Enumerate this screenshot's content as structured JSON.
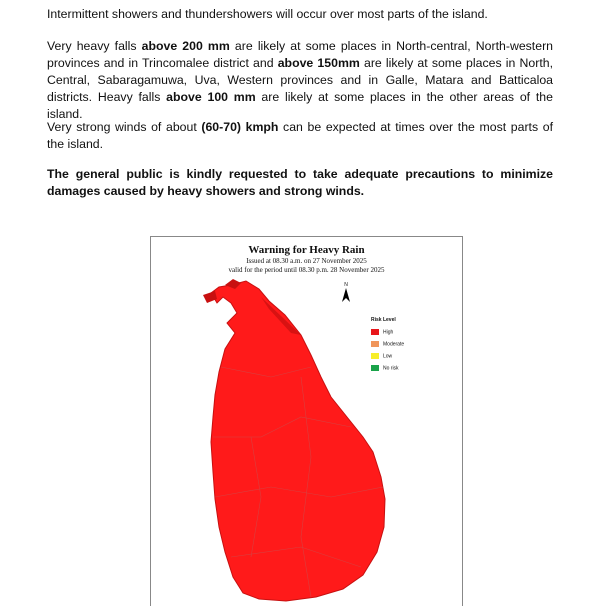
{
  "paragraphs": {
    "p1": "Intermittent showers and thundershowers will occur over most parts of the island.",
    "p2": {
      "a": "Very heavy falls ",
      "b": "above 200 mm",
      "c": " are likely at some places in North-central, North-western provinces and in Trincomalee district and ",
      "d": "above 150mm",
      "e": " are likely at some places in North, Central, Sabaragamuwa, Uva, Western provinces and in Galle, Matara and Batticaloa districts. Heavy falls ",
      "f": "above 100 mm",
      "g": " are likely at some places in the other areas of the island."
    },
    "p3": {
      "a": "Very strong winds of about ",
      "b": "(60-70) kmph",
      "c": " can be expected at times over the most parts of the island."
    },
    "p4": "The general public is kindly requested to take adequate precautions to minimize damages caused by heavy showers and strong winds."
  },
  "map": {
    "title": "Warning  for Heavy Rain",
    "issued": "Issued at 08.30 a.m. on 27 November 2025",
    "valid": "valid for the period until 08.30 p.m. 28 November 2025",
    "north_label": "N",
    "legend": {
      "title": "Risk Level",
      "items": [
        {
          "label": "High",
          "color": "#e8161b"
        },
        {
          "label": "Moderate",
          "color": "#f0955a"
        },
        {
          "label": "Low",
          "color": "#f7ee2a"
        },
        {
          "label": "No risk",
          "color": "#1aa34a"
        }
      ]
    },
    "fill_color": "#ff1a1a"
  }
}
